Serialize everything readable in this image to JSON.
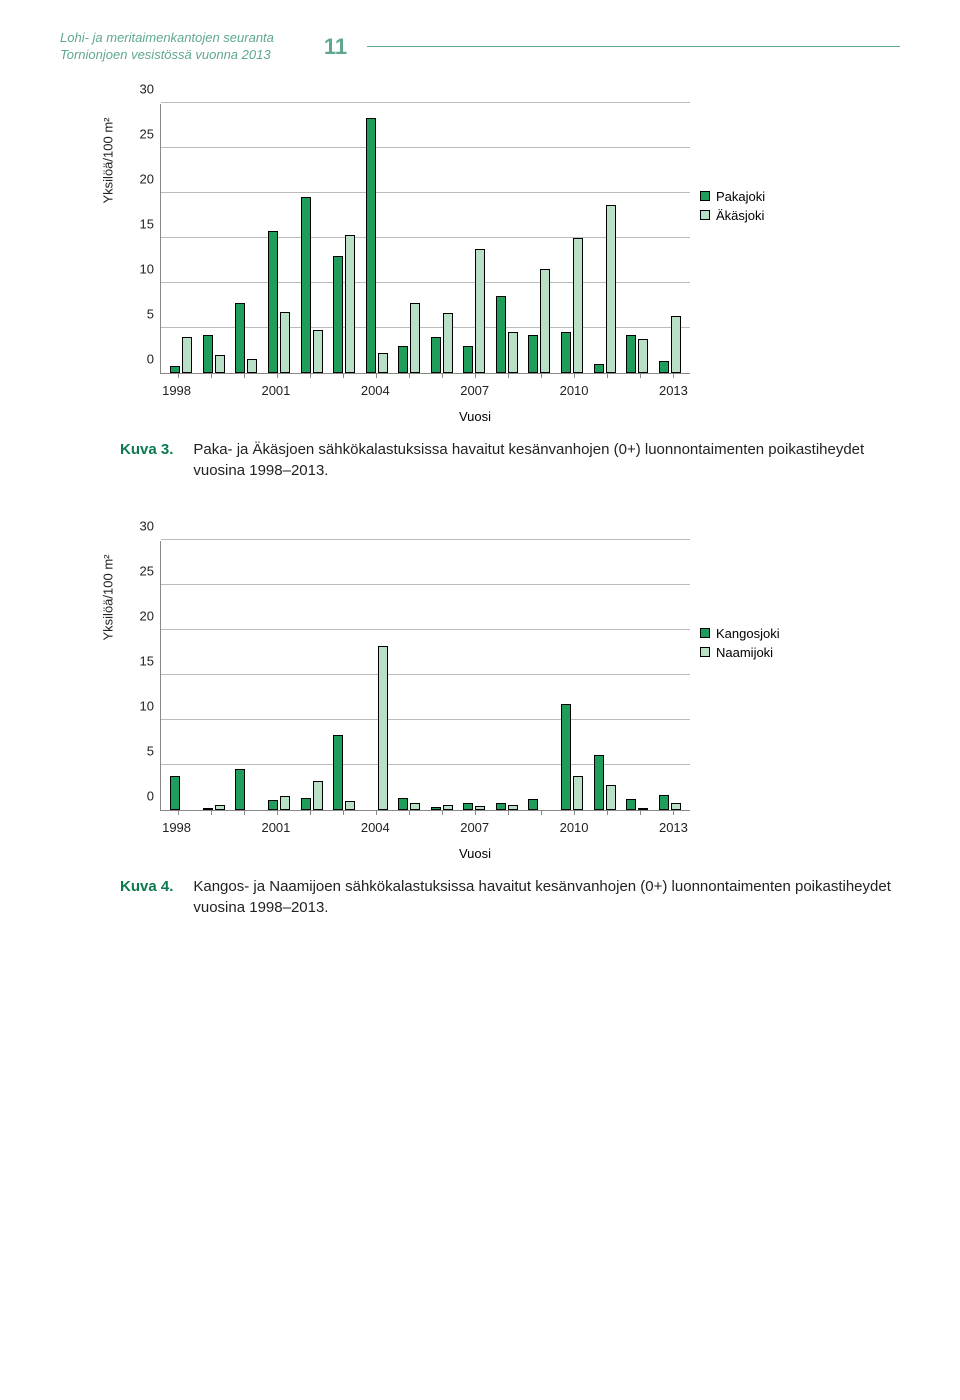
{
  "header": {
    "line1": "Lohi- ja meritaimenkantojen seuranta",
    "line2": "Tornionjoen vesistössä vuonna 2013",
    "page_number": "11"
  },
  "colors": {
    "series_a": "#1e9e5a",
    "series_b": "#b9dfc7",
    "grid": "#bbbbbb",
    "axis": "#888888",
    "accent": "#5fa88c",
    "caption_label": "#0b7a4d"
  },
  "chart1": {
    "type": "bar",
    "y_label": "Yksilöä/100 m²",
    "y_max": 30,
    "y_ticks": [
      0,
      5,
      10,
      15,
      20,
      25,
      30
    ],
    "x_label": "Vuosi",
    "x_tick_labels": [
      "1998",
      "2001",
      "2004",
      "2007",
      "2010",
      "2013"
    ],
    "years": [
      1998,
      1999,
      2000,
      2001,
      2002,
      2003,
      2004,
      2005,
      2006,
      2007,
      2008,
      2009,
      2010,
      2011,
      2012,
      2013
    ],
    "series": [
      {
        "name": "Pakajoki",
        "color": "#1e9e5a",
        "values": [
          0.7,
          4.2,
          7.7,
          15.8,
          19.5,
          13,
          28.3,
          3,
          4,
          3,
          8.5,
          4.2,
          4.5,
          1.0,
          4.2,
          1.3
        ]
      },
      {
        "name": "Äkäsjoki",
        "color": "#b9dfc7",
        "values": [
          4.0,
          2.0,
          1.5,
          6.7,
          4.7,
          15.3,
          2.2,
          7.8,
          6.6,
          13.7,
          4.5,
          11.5,
          15.0,
          18.6,
          3.8,
          6.3
        ]
      }
    ]
  },
  "caption1": {
    "label": "Kuva 3.",
    "text": "Paka- ja Äkäsjoen sähkökalastuksissa havaitut kesänvanhojen (0+) luonnontaimenten poikastiheydet vuosina 1998–2013."
  },
  "chart2": {
    "type": "bar",
    "y_label": "Yksilöä/100 m²",
    "y_max": 30,
    "y_ticks": [
      0,
      5,
      10,
      15,
      20,
      25,
      30
    ],
    "x_label": "Vuosi",
    "x_tick_labels": [
      "1998",
      "2001",
      "2004",
      "2007",
      "2010",
      "2013"
    ],
    "years": [
      1998,
      1999,
      2000,
      2001,
      2002,
      2003,
      2004,
      2005,
      2006,
      2007,
      2008,
      2009,
      2010,
      2011,
      2012,
      2013
    ],
    "series": [
      {
        "name": "Kangosjoki",
        "color": "#1e9e5a",
        "values": [
          3.7,
          0.2,
          4.5,
          1.1,
          1.3,
          8.3,
          0,
          1.3,
          0.3,
          0.8,
          0.7,
          1.2,
          11.7,
          6.1,
          1.2,
          1.6
        ]
      },
      {
        "name": "Naamijoki",
        "color": "#b9dfc7",
        "values": [
          0,
          0.5,
          0,
          1.5,
          3.2,
          1.0,
          18.2,
          0.8,
          0.5,
          0.4,
          0.5,
          0,
          3.8,
          2.8,
          0.2,
          0.8
        ]
      }
    ]
  },
  "caption2": {
    "label": "Kuva 4.",
    "text": "Kangos- ja Naamijoen sähkökalastuksissa havaitut kesänvanhojen (0+) luonnontaimenten poikastiheydet vuosina 1998–2013."
  }
}
